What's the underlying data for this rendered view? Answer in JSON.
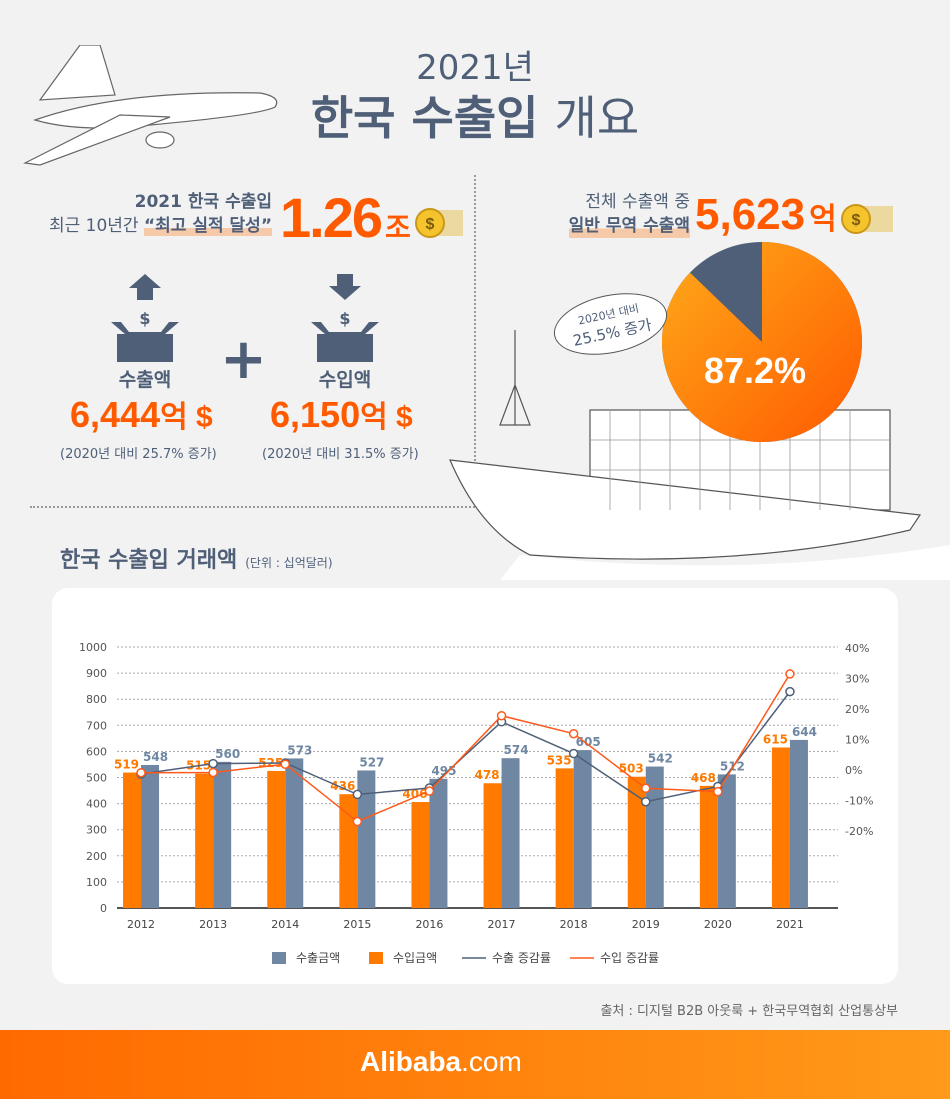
{
  "header": {
    "year_title": "2021년",
    "main_title_bold": "한국 수출입",
    "main_title_rest": "개요"
  },
  "summary": {
    "line1": "2021 한국 수출입",
    "line2_prefix": "최근 10년간",
    "line2_highlight": "“최고 실적 달성”",
    "total_value": "1.26",
    "total_unit": "조"
  },
  "exports": {
    "label": "수출액",
    "value": "6,444",
    "unit": "억 $",
    "note": "(2020년 대비 25.7% 증가)"
  },
  "imports": {
    "label": "수입액",
    "value": "6,150",
    "unit": "억 $",
    "note": "(2020년 대비 31.5% 증가)"
  },
  "general_trade": {
    "line1": "전체 수출액 중",
    "line2": "일반 무역 수출액",
    "value": "5,623",
    "unit": "억",
    "pie_percent_label": "87.2%",
    "pie_percent": 87.2,
    "badge_line1": "2020년 대비",
    "badge_line2": "25.5% 증가"
  },
  "section": {
    "title": "한국 수출입 거래액",
    "unit_note": "(단위 : 십억달러)"
  },
  "colors": {
    "export": "#6f87a3",
    "import": "#ff7a00",
    "export_line": "#4f5f78",
    "import_line": "#ff5a1a",
    "accent": "#ff5a00"
  },
  "chart_data": {
    "type": "bar+line",
    "categories": [
      "2012",
      "2013",
      "2014",
      "2015",
      "2016",
      "2017",
      "2018",
      "2019",
      "2020",
      "2021"
    ],
    "series": [
      {
        "name": "수출금액",
        "type": "bar",
        "axis": "left",
        "values": [
          548,
          560,
          573,
          527,
          495,
          574,
          605,
          542,
          512,
          644
        ]
      },
      {
        "name": "수입금액",
        "type": "bar",
        "axis": "left",
        "values": [
          519,
          515,
          525,
          436,
          406,
          478,
          535,
          503,
          468,
          615
        ]
      },
      {
        "name": "수출 증감률",
        "type": "line",
        "axis": "right",
        "values": [
          -1.3,
          2.1,
          2.3,
          -8.0,
          -5.9,
          15.8,
          5.4,
          -10.4,
          -5.4,
          25.7
        ]
      },
      {
        "name": "수입 증감률",
        "type": "line",
        "axis": "right",
        "values": [
          -0.9,
          -0.8,
          1.9,
          -16.9,
          -6.9,
          17.8,
          11.9,
          -6.0,
          -7.1,
          31.5
        ]
      }
    ],
    "y_left": {
      "range": [
        0,
        1000
      ],
      "ticks": [
        "0",
        "100",
        "200",
        "300",
        "400",
        "500",
        "600",
        "700",
        "800",
        "900",
        "1000"
      ]
    },
    "y_right": {
      "range": [
        -40,
        40
      ],
      "ticks": [
        "-20%",
        "-10%",
        "0%",
        "10%",
        "20%",
        "30%",
        "40%"
      ]
    },
    "grid": true,
    "legend": "bottom"
  },
  "source": "출처 : 디지털 B2B 아웃룩 + 한국무역협회 산업통상부",
  "brand": {
    "name": "Alibaba",
    "suffix": ".com"
  }
}
